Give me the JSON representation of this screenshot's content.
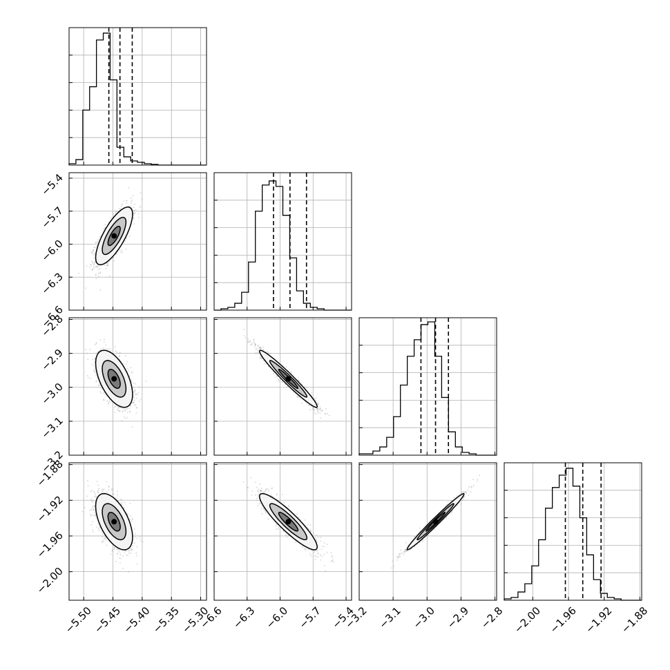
{
  "chart_data": {
    "type": "corner",
    "n_params": 4,
    "grid": true,
    "line_color": "#000000",
    "point_color": "#9a9a9a",
    "fill_color": "#6f6f6f",
    "params": [
      {
        "range": [
          -5.525,
          -5.29
        ],
        "ticks": [
          -5.5,
          -5.45,
          -5.4,
          -5.35,
          -5.3
        ],
        "tick_labels": [
          "−5.50",
          "−5.45",
          "−5.40",
          "−5.35",
          "−5.30"
        ],
        "quantiles": [
          -5.457,
          -5.438,
          -5.417
        ],
        "median": -5.438
      },
      {
        "range": [
          -6.6,
          -5.35
        ],
        "ticks": [
          -6.6,
          -6.3,
          -6.0,
          -5.7,
          -5.4
        ],
        "tick_labels": [
          "−6.6",
          "−6.3",
          "−6.0",
          "−5.7",
          "−5.4"
        ],
        "quantiles": [
          -6.06,
          -5.91,
          -5.76
        ],
        "median": -5.91
      },
      {
        "range": [
          -3.2,
          -2.795
        ],
        "ticks": [
          -3.2,
          -3.1,
          -3.0,
          -2.9,
          -2.8
        ],
        "tick_labels": [
          "−3.2",
          "−3.1",
          "−3.0",
          "−2.9",
          "−2.8"
        ],
        "quantiles": [
          -3.018,
          -2.975,
          -2.937
        ],
        "median": -2.975
      },
      {
        "range": [
          -2.032,
          -1.878
        ],
        "ticks": [
          -2.0,
          -1.96,
          -1.92,
          -1.88
        ],
        "tick_labels": [
          "−2.00",
          "−1.96",
          "−1.92",
          "−1.88"
        ],
        "quantiles": [
          -1.9635,
          -1.944,
          -1.9235
        ],
        "median": -1.944
      }
    ],
    "histograms": [
      {
        "param": 0,
        "edges_start": -5.525,
        "bin_width": 0.0117,
        "counts": [
          0.01,
          0.04,
          0.4,
          0.57,
          0.91,
          0.96,
          0.62,
          0.13,
          0.06,
          0.03,
          0.02,
          0.01,
          0.005,
          0,
          0,
          0,
          0,
          0,
          0,
          0
        ]
      },
      {
        "param": 1,
        "edges_start": -6.6,
        "bin_width": 0.0625,
        "counts": [
          0,
          0.01,
          0.02,
          0.05,
          0.13,
          0.35,
          0.72,
          0.91,
          0.94,
          0.9,
          0.69,
          0.38,
          0.14,
          0.05,
          0.02,
          0.01,
          0,
          0,
          0,
          0
        ]
      },
      {
        "param": 2,
        "edges_start": -3.2,
        "bin_width": 0.02025,
        "counts": [
          0.01,
          0.01,
          0.03,
          0.06,
          0.13,
          0.28,
          0.51,
          0.72,
          0.84,
          0.95,
          0.97,
          0.72,
          0.42,
          0.17,
          0.06,
          0.02,
          0.01,
          0,
          0,
          0
        ]
      },
      {
        "param": 3,
        "edges_start": -2.032,
        "bin_width": 0.0077,
        "counts": [
          0.01,
          0.02,
          0.06,
          0.12,
          0.25,
          0.44,
          0.67,
          0.82,
          0.91,
          0.96,
          0.83,
          0.6,
          0.33,
          0.15,
          0.05,
          0.02,
          0.01,
          0,
          0,
          0
        ]
      }
    ],
    "pairs": [
      {
        "x": 0,
        "y": 1,
        "center": [
          -5.448,
          -5.925
        ],
        "sd": [
          0.015,
          0.125
        ],
        "rho": 0.75
      },
      {
        "x": 0,
        "y": 2,
        "center": [
          -5.448,
          -2.975
        ],
        "sd": [
          0.015,
          0.04
        ],
        "rho": -0.55
      },
      {
        "x": 0,
        "y": 3,
        "center": [
          -5.448,
          -1.944
        ],
        "sd": [
          0.015,
          0.015
        ],
        "rho": -0.55
      },
      {
        "x": 1,
        "y": 2,
        "center": [
          -5.925,
          -2.975
        ],
        "sd": [
          0.125,
          0.04
        ],
        "rho": -0.97
      },
      {
        "x": 1,
        "y": 3,
        "center": [
          -5.925,
          -1.944
        ],
        "sd": [
          0.125,
          0.015
        ],
        "rho": -0.9
      },
      {
        "x": 2,
        "y": 3,
        "center": [
          -2.975,
          -1.944
        ],
        "sd": [
          0.04,
          0.015
        ],
        "rho": 0.985
      }
    ]
  }
}
